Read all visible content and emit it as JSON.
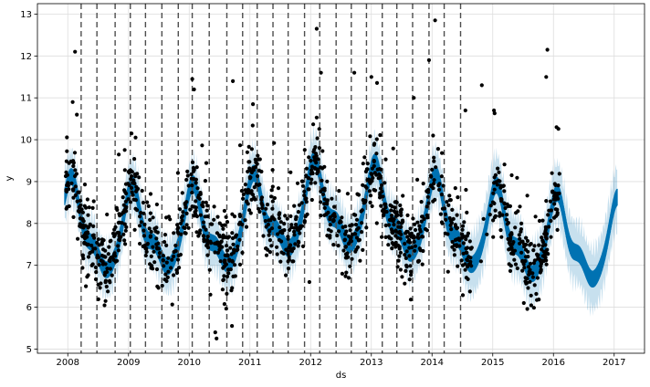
{
  "chart_data": {
    "type": "scatter",
    "title": "",
    "xlabel": "ds",
    "ylabel": "y",
    "x_ticks": [
      "2008",
      "2009",
      "2010",
      "2011",
      "2012",
      "2013",
      "2014",
      "2015",
      "2016",
      "2017"
    ],
    "y_ticks": [
      "5",
      "6",
      "7",
      "8",
      "9",
      "10",
      "11",
      "12",
      "13"
    ],
    "xlim": [
      2007.5,
      2017.5
    ],
    "ylim": [
      4.9,
      13.25
    ],
    "grid": true,
    "legend": "none",
    "series": [
      {
        "kind": "observed",
        "color": "#000000",
        "x_range": [
          2007.95,
          2016.1
        ],
        "gap": [
          2014.65,
          2015.0
        ],
        "outliers": [
          {
            "x": 2008.12,
            "y": 12.1
          },
          {
            "x": 2008.08,
            "y": 10.9
          },
          {
            "x": 2008.15,
            "y": 10.6
          },
          {
            "x": 2009.05,
            "y": 10.15
          },
          {
            "x": 2010.05,
            "y": 11.45
          },
          {
            "x": 2010.08,
            "y": 11.2
          },
          {
            "x": 2010.35,
            "y": 6.3
          },
          {
            "x": 2010.43,
            "y": 5.4
          },
          {
            "x": 2010.45,
            "y": 5.25
          },
          {
            "x": 2010.72,
            "y": 11.4
          },
          {
            "x": 2011.05,
            "y": 10.85
          },
          {
            "x": 2012.1,
            "y": 12.65
          },
          {
            "x": 2012.17,
            "y": 11.6
          },
          {
            "x": 2011.98,
            "y": 6.6
          },
          {
            "x": 2012.72,
            "y": 11.6
          },
          {
            "x": 2013.0,
            "y": 11.5
          },
          {
            "x": 2013.7,
            "y": 11.0
          },
          {
            "x": 2014.05,
            "y": 12.85
          },
          {
            "x": 2013.95,
            "y": 11.9
          },
          {
            "x": 2014.55,
            "y": 10.7
          },
          {
            "x": 2014.82,
            "y": 11.3
          },
          {
            "x": 2015.02,
            "y": 10.7
          },
          {
            "x": 2015.9,
            "y": 12.15
          },
          {
            "x": 2015.88,
            "y": 11.5
          },
          {
            "x": 2016.05,
            "y": 10.3
          }
        ]
      },
      {
        "kind": "forecast",
        "color": "#0072B2",
        "x_range": [
          2007.95,
          2017.05
        ],
        "uncertainty_color": "#0072B2"
      }
    ],
    "changepoints": [
      2008.22,
      2008.48,
      2008.78,
      2009.03,
      2009.28,
      2009.55,
      2009.82,
      2010.05,
      2010.33,
      2010.62,
      2010.88,
      2011.12,
      2011.38,
      2011.63,
      2011.9,
      2012.15,
      2012.42,
      2012.67,
      2012.92,
      2013.18,
      2013.42,
      2013.68,
      2013.95,
      2014.2,
      2014.47
    ]
  }
}
